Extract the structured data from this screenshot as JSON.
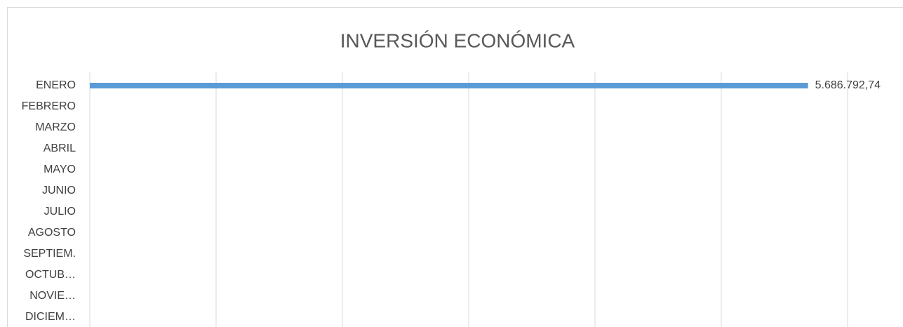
{
  "chart_data": {
    "type": "hbar",
    "title": "INVERSIÓN ECONÓMICA",
    "categories": [
      "ENERO",
      "FEBRERO",
      "MARZO",
      "ABRIL",
      "MAYO",
      "JUNIO",
      "JULIO",
      "AGOSTO",
      "SEPTIEM.",
      "OCTUB…",
      "NOVIE…",
      "DICIEM…"
    ],
    "values": [
      5686792.74,
      null,
      null,
      null,
      null,
      null,
      null,
      null,
      null,
      null,
      null,
      null
    ],
    "value_labels": [
      "5.686.792,74",
      null,
      null,
      null,
      null,
      null,
      null,
      null,
      null,
      null,
      null,
      null
    ],
    "color": "#5b9bd5",
    "xlim": [
      0,
      6000000
    ],
    "xticks": [
      0,
      1000000,
      2000000,
      3000000,
      4000000,
      5000000,
      6000000
    ],
    "grid": true
  }
}
